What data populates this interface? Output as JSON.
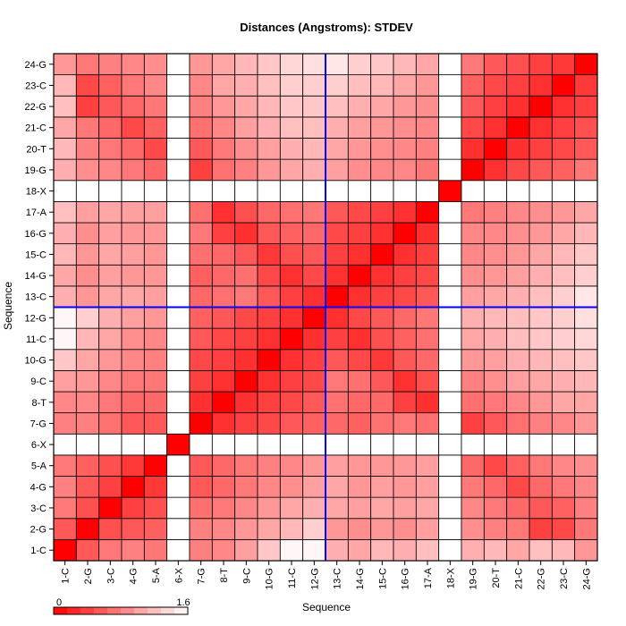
{
  "chart_data": {
    "type": "heatmap",
    "title": "Distances (Angstroms):  STDEV",
    "xlabel": "Sequence",
    "ylabel": "Sequence",
    "labels": [
      "1-C",
      "2-G",
      "3-C",
      "4-G",
      "5-A",
      "6-X",
      "7-G",
      "8-T",
      "9-C",
      "10-G",
      "11-C",
      "12-G",
      "13-C",
      "14-G",
      "15-C",
      "16-G",
      "17-A",
      "18-X",
      "19-G",
      "20-T",
      "21-C",
      "22-G",
      "23-C",
      "24-G"
    ],
    "missing": [
      "6-X",
      "18-X"
    ],
    "highlight": "12-G",
    "colorbar": {
      "min": 0,
      "max": 1.6,
      "min_label": "0",
      "max_label": "1.6",
      "low_color": "#ff0000",
      "high_color": "#ffffff"
    },
    "colors": {
      "line": "#0000ff",
      "grid": "#000000",
      "missing": "#ffffff"
    },
    "values": [
      [
        0.0,
        0.55,
        0.75,
        0.8,
        0.75,
        null,
        0.8,
        0.85,
        1.0,
        1.25,
        1.55,
        1.55,
        1.1,
        1.05,
        1.15,
        1.1,
        1.2,
        null,
        1.1,
        1.15,
        1.05,
        1.2,
        1.15,
        0.95
      ],
      [
        0.55,
        0.0,
        0.5,
        0.55,
        0.6,
        null,
        0.8,
        0.85,
        0.95,
        1.05,
        1.15,
        1.3,
        0.95,
        0.9,
        0.95,
        0.9,
        1.0,
        null,
        0.9,
        0.8,
        0.75,
        0.4,
        0.45,
        0.75
      ],
      [
        0.75,
        0.5,
        0.0,
        0.4,
        0.5,
        null,
        0.7,
        0.75,
        0.85,
        0.95,
        1.05,
        1.1,
        1.05,
        1.0,
        1.05,
        1.0,
        1.05,
        null,
        0.85,
        0.75,
        0.65,
        0.55,
        0.6,
        0.8
      ],
      [
        0.8,
        0.55,
        0.4,
        0.0,
        0.35,
        null,
        0.55,
        0.65,
        0.75,
        0.85,
        0.9,
        1.0,
        1.05,
        0.95,
        1.0,
        0.95,
        1.0,
        null,
        0.75,
        0.65,
        0.45,
        0.65,
        0.75,
        0.85
      ],
      [
        0.75,
        0.6,
        0.5,
        0.35,
        0.0,
        null,
        0.55,
        0.65,
        0.75,
        0.8,
        0.85,
        0.95,
        1.0,
        0.95,
        0.95,
        0.95,
        1.0,
        null,
        0.65,
        0.45,
        0.6,
        0.75,
        0.85,
        0.9
      ],
      [
        null,
        null,
        null,
        null,
        null,
        0.0,
        null,
        null,
        null,
        null,
        null,
        null,
        null,
        null,
        null,
        null,
        null,
        null,
        null,
        null,
        null,
        null,
        null,
        null
      ],
      [
        0.8,
        0.8,
        0.7,
        0.55,
        0.55,
        null,
        0.0,
        0.3,
        0.4,
        0.45,
        0.55,
        0.6,
        0.65,
        0.6,
        0.7,
        0.75,
        0.7,
        null,
        0.4,
        0.55,
        0.7,
        0.8,
        0.85,
        0.95
      ],
      [
        0.85,
        0.85,
        0.75,
        0.65,
        0.65,
        null,
        0.3,
        0.0,
        0.3,
        0.4,
        0.45,
        0.55,
        0.7,
        0.65,
        0.65,
        0.4,
        0.3,
        null,
        0.7,
        0.75,
        0.85,
        0.95,
        1.05,
        1.05
      ],
      [
        1.0,
        0.95,
        0.85,
        0.75,
        0.75,
        null,
        0.4,
        0.3,
        0.0,
        0.3,
        0.4,
        0.45,
        0.75,
        0.7,
        0.55,
        0.3,
        0.5,
        null,
        0.8,
        0.9,
        1.0,
        1.05,
        1.1,
        1.15
      ],
      [
        1.25,
        1.05,
        0.95,
        0.85,
        0.8,
        null,
        0.45,
        0.4,
        0.3,
        0.0,
        0.3,
        0.4,
        0.55,
        0.45,
        0.35,
        0.55,
        0.65,
        null,
        0.95,
        1.0,
        1.1,
        1.15,
        1.2,
        1.25
      ],
      [
        1.55,
        1.15,
        1.05,
        0.9,
        0.85,
        null,
        0.55,
        0.45,
        0.4,
        0.3,
        0.0,
        0.3,
        0.4,
        0.3,
        0.5,
        0.6,
        0.7,
        null,
        1.05,
        1.1,
        1.2,
        1.25,
        1.3,
        1.35
      ],
      [
        1.55,
        1.3,
        1.1,
        1.0,
        0.95,
        null,
        0.6,
        0.55,
        0.45,
        0.4,
        0.3,
        0.0,
        0.3,
        0.45,
        0.55,
        0.65,
        0.75,
        null,
        1.1,
        1.15,
        1.2,
        1.25,
        1.3,
        1.4
      ],
      [
        1.1,
        0.95,
        1.05,
        1.05,
        1.0,
        null,
        0.65,
        0.7,
        0.75,
        0.55,
        0.4,
        0.3,
        0.0,
        0.3,
        0.4,
        0.45,
        0.55,
        null,
        1.0,
        1.05,
        1.1,
        1.2,
        1.3,
        1.45
      ],
      [
        1.05,
        0.9,
        1.0,
        0.95,
        0.95,
        null,
        0.6,
        0.65,
        0.7,
        0.45,
        0.3,
        0.45,
        0.3,
        0.0,
        0.3,
        0.4,
        0.45,
        null,
        0.9,
        0.95,
        1.0,
        1.1,
        1.2,
        1.3
      ],
      [
        1.15,
        0.95,
        1.05,
        1.0,
        0.95,
        null,
        0.7,
        0.65,
        0.55,
        0.35,
        0.5,
        0.55,
        0.4,
        0.3,
        0.0,
        0.3,
        0.4,
        null,
        0.85,
        0.9,
        0.95,
        1.05,
        1.15,
        1.25
      ],
      [
        1.1,
        0.9,
        1.0,
        0.95,
        0.95,
        null,
        0.75,
        0.4,
        0.3,
        0.55,
        0.6,
        0.65,
        0.45,
        0.4,
        0.3,
        0.0,
        0.3,
        null,
        0.85,
        0.85,
        0.9,
        0.95,
        1.05,
        1.15
      ],
      [
        1.2,
        1.0,
        1.05,
        1.0,
        1.0,
        null,
        0.7,
        0.3,
        0.5,
        0.65,
        0.7,
        0.75,
        0.55,
        0.45,
        0.4,
        0.3,
        0.0,
        null,
        0.75,
        0.8,
        0.85,
        0.9,
        0.95,
        1.05
      ],
      [
        null,
        null,
        null,
        null,
        null,
        null,
        null,
        null,
        null,
        null,
        null,
        null,
        null,
        null,
        null,
        null,
        null,
        0.0,
        null,
        null,
        null,
        null,
        null,
        null
      ],
      [
        1.1,
        0.9,
        0.85,
        0.75,
        0.65,
        null,
        0.4,
        0.7,
        0.8,
        0.95,
        1.05,
        1.1,
        1.0,
        0.9,
        0.85,
        0.85,
        0.75,
        null,
        0.0,
        0.3,
        0.45,
        0.55,
        0.6,
        0.75
      ],
      [
        1.15,
        0.8,
        0.75,
        0.65,
        0.45,
        null,
        0.55,
        0.75,
        0.9,
        1.0,
        1.1,
        1.15,
        1.05,
        0.95,
        0.9,
        0.85,
        0.8,
        null,
        0.3,
        0.0,
        0.3,
        0.4,
        0.45,
        0.55
      ],
      [
        1.05,
        0.75,
        0.65,
        0.45,
        0.6,
        null,
        0.7,
        0.85,
        1.0,
        1.1,
        1.2,
        1.2,
        1.1,
        1.0,
        0.95,
        0.9,
        0.85,
        null,
        0.45,
        0.3,
        0.0,
        0.3,
        0.4,
        0.5
      ],
      [
        1.2,
        0.4,
        0.55,
        0.65,
        0.75,
        null,
        0.8,
        0.95,
        1.05,
        1.15,
        1.25,
        1.25,
        1.2,
        1.1,
        1.05,
        0.95,
        0.9,
        null,
        0.55,
        0.4,
        0.3,
        0.0,
        0.3,
        0.4
      ],
      [
        1.15,
        0.45,
        0.6,
        0.75,
        0.85,
        null,
        0.85,
        1.05,
        1.1,
        1.2,
        1.3,
        1.3,
        1.3,
        1.2,
        1.15,
        1.05,
        0.95,
        null,
        0.6,
        0.45,
        0.4,
        0.3,
        0.0,
        0.35
      ],
      [
        0.95,
        0.75,
        0.8,
        0.85,
        0.9,
        null,
        0.95,
        1.05,
        1.15,
        1.25,
        1.35,
        1.4,
        1.45,
        1.3,
        1.25,
        1.15,
        1.05,
        null,
        0.75,
        0.55,
        0.5,
        0.4,
        0.35,
        0.0
      ]
    ]
  }
}
